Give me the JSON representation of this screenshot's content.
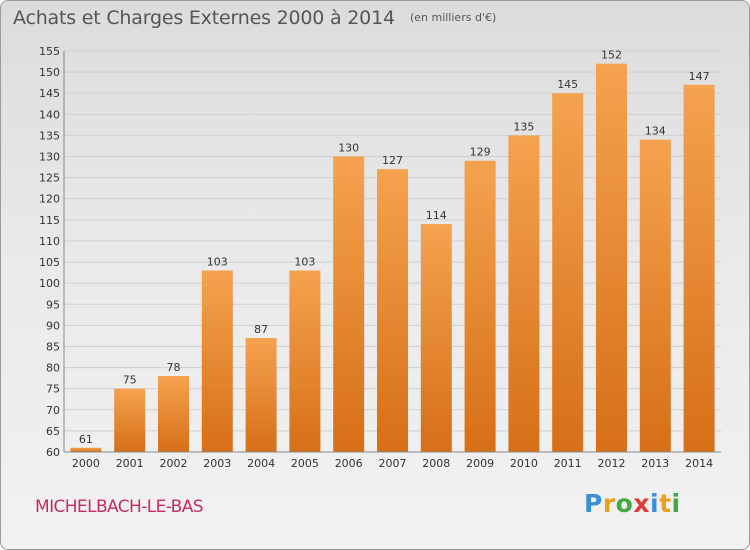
{
  "title": "Achats et Charges Externes 2000 à 2014",
  "subtitle": "(en milliers d'€)",
  "commune": "MICHELBACH-LE-BAS",
  "logo": {
    "text": "Proxiti",
    "letter_colors": [
      "#3a8fd8",
      "#e8a020",
      "#44a844",
      "#e03a3a",
      "#3a8fd8",
      "#e8a020",
      "#44a844"
    ]
  },
  "colors": {
    "bar_light": "#f5a24e",
    "bar_dark": "#d66f18",
    "grid": "#cfcfcf",
    "axis_text": "#333333",
    "title": "#555555",
    "commune": "#c0305a"
  },
  "chart_data": {
    "type": "bar",
    "title": "Achats et Charges Externes 2000 à 2014",
    "categories": [
      "2000",
      "2001",
      "2002",
      "2003",
      "2004",
      "2005",
      "2006",
      "2007",
      "2008",
      "2009",
      "2010",
      "2011",
      "2012",
      "2013",
      "2014"
    ],
    "values": [
      61,
      75,
      78,
      103,
      87,
      103,
      130,
      127,
      114,
      129,
      135,
      145,
      152,
      134,
      147
    ],
    "ylim": [
      60,
      155
    ],
    "yticks": [
      60,
      65,
      70,
      75,
      80,
      85,
      90,
      95,
      100,
      105,
      110,
      115,
      120,
      125,
      130,
      135,
      140,
      145,
      150,
      155
    ],
    "grid": true,
    "data_labels": true
  }
}
